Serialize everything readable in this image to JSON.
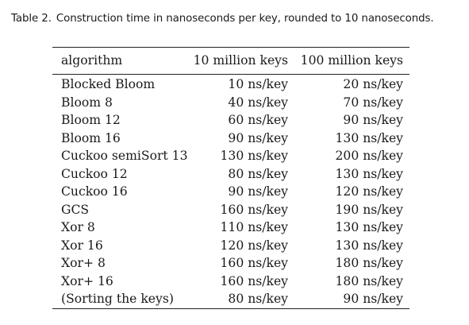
{
  "caption": {
    "label": "Table 2.",
    "text": "Construction time in nanoseconds per key, rounded to 10 nanoseconds."
  },
  "table": {
    "headers": [
      "algorithm",
      "10 million keys",
      "100 million keys"
    ],
    "rows": [
      [
        "Blocked Bloom",
        "10 ns/key",
        "20 ns/key"
      ],
      [
        "Bloom 8",
        "40 ns/key",
        "70 ns/key"
      ],
      [
        "Bloom 12",
        "60 ns/key",
        "90 ns/key"
      ],
      [
        "Bloom 16",
        "90 ns/key",
        "130 ns/key"
      ],
      [
        "Cuckoo semiSort 13",
        "130 ns/key",
        "200 ns/key"
      ],
      [
        "Cuckoo 12",
        "80 ns/key",
        "130 ns/key"
      ],
      [
        "Cuckoo 16",
        "90 ns/key",
        "120 ns/key"
      ],
      [
        "GCS",
        "160 ns/key",
        "190 ns/key"
      ],
      [
        "Xor 8",
        "110 ns/key",
        "130 ns/key"
      ],
      [
        "Xor 16",
        "120 ns/key",
        "130 ns/key"
      ],
      [
        "Xor+ 8",
        "160 ns/key",
        "180 ns/key"
      ],
      [
        "Xor+ 16",
        "160 ns/key",
        "180 ns/key"
      ],
      [
        "(Sorting the keys)",
        "80 ns/key",
        "90 ns/key"
      ]
    ]
  }
}
